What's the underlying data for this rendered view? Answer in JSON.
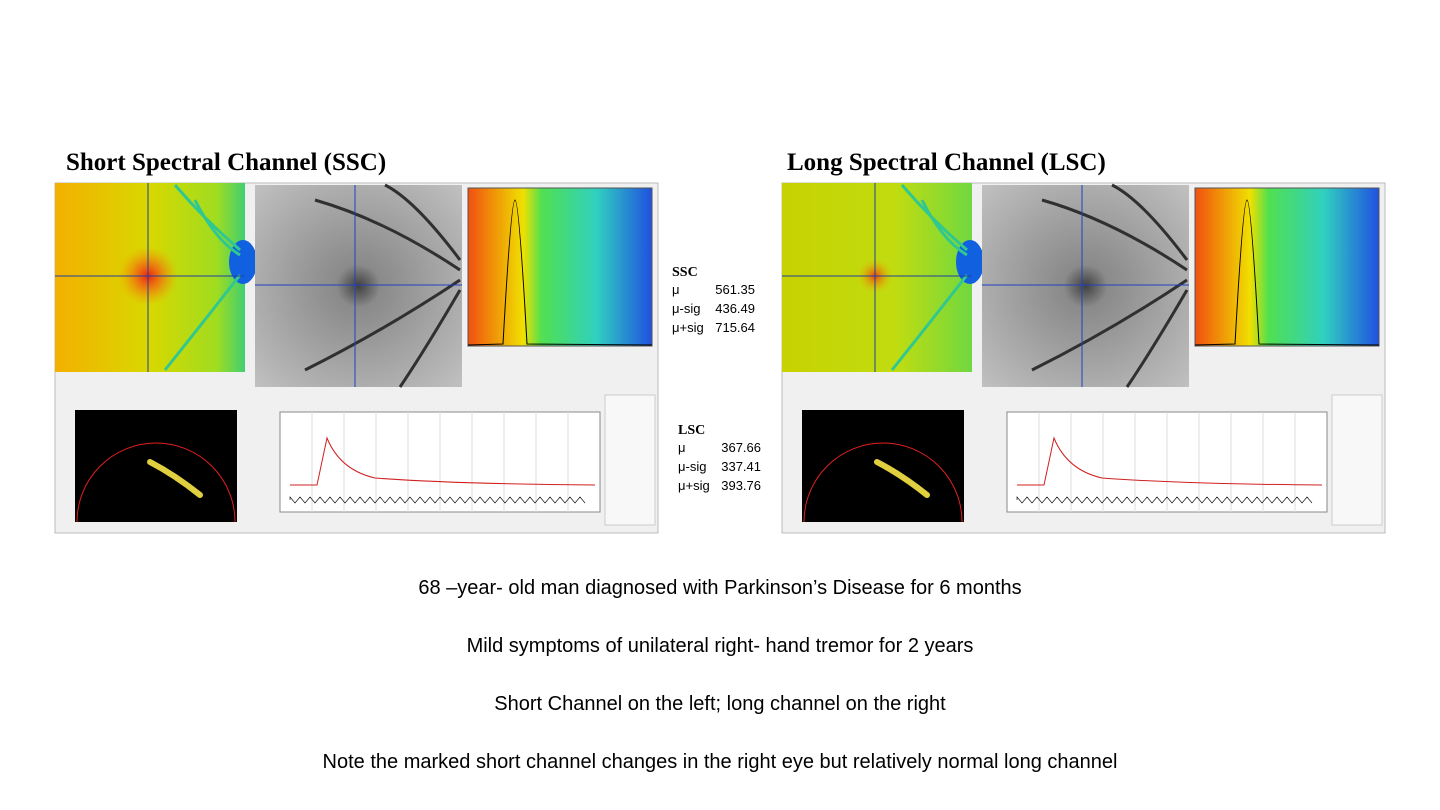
{
  "panels": [
    {
      "title": "Short Spectral Channel (SSC)"
    },
    {
      "title": "Long Spectral Channel (LSC)"
    }
  ],
  "stats": [
    {
      "label": "SSC",
      "rows": [
        [
          "μ",
          "561.35"
        ],
        [
          "μ-sig",
          "436.49"
        ],
        [
          "μ+sig",
          "715.64"
        ]
      ]
    },
    {
      "label": "LSC",
      "rows": [
        [
          "μ",
          "367.66"
        ],
        [
          "μ-sig",
          "337.41"
        ],
        [
          "μ+sig",
          "393.76"
        ]
      ]
    }
  ],
  "notes": [
    "68 –year- old man diagnosed with Parkinson’s Disease for 6 months",
    "Mild symptoms of unilateral right- hand tremor for 2 years",
    "Short Channel on the left; long channel on the right",
    "Note the marked short channel changes in the right eye but relatively normal long channel"
  ]
}
